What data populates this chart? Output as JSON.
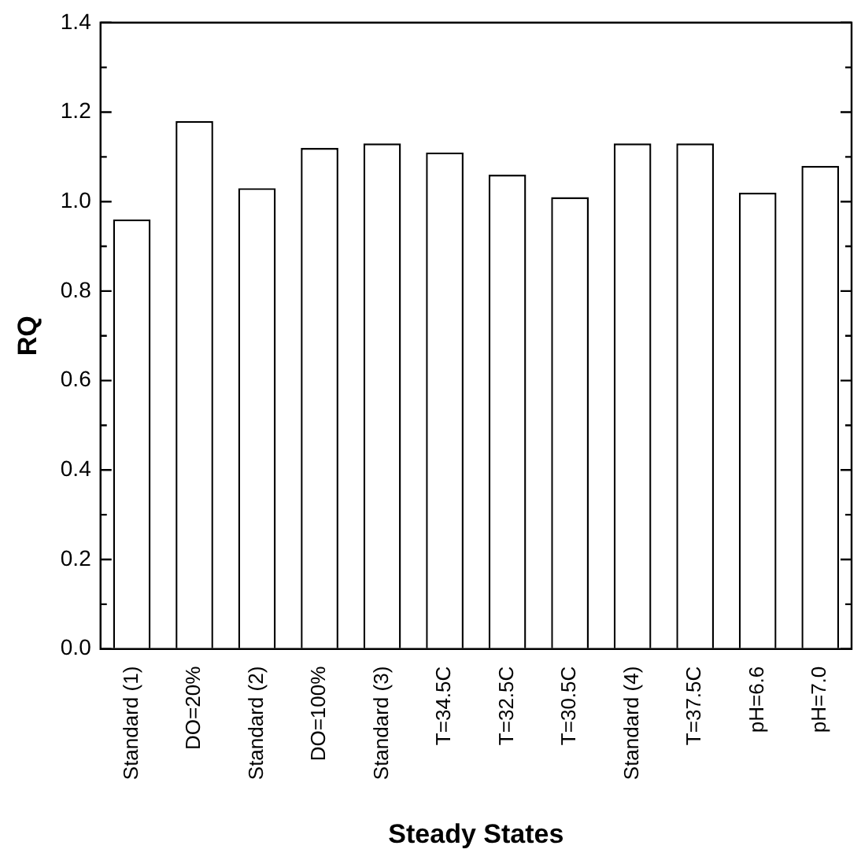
{
  "chart_data": {
    "type": "bar",
    "xlabel": "Steady States",
    "ylabel": "RQ",
    "categories": [
      "Standard (1)",
      "DO=20%",
      "Standard (2)",
      "DO=100%",
      "Standard (3)",
      "T=34.5C",
      "T=32.5C",
      "T=30.5C",
      "Standard (4)",
      "T=37.5C",
      "pH=6.6",
      "pH=7.0"
    ],
    "values": [
      0.96,
      1.18,
      1.03,
      1.12,
      1.13,
      1.11,
      1.06,
      1.01,
      1.13,
      1.13,
      1.02,
      1.08
    ],
    "color": "#ffffff",
    "ylim": [
      0,
      1.4
    ],
    "yticks": [
      {
        "value": 0,
        "label": "0.0"
      },
      {
        "value": 0.1,
        "label": null
      },
      {
        "value": 0.2,
        "label": "0.2"
      },
      {
        "value": 0.3,
        "label": null
      },
      {
        "value": 0.4,
        "label": "0.4"
      },
      {
        "value": 0.5,
        "label": null
      },
      {
        "value": 0.6,
        "label": "0.6"
      },
      {
        "value": 0.7,
        "label": null
      },
      {
        "value": 0.8,
        "label": "0.8"
      },
      {
        "value": 0.9,
        "label": null
      },
      {
        "value": 1,
        "label": "1.0"
      },
      {
        "value": 1.1,
        "label": null
      },
      {
        "value": 1.2,
        "label": "1.2"
      },
      {
        "value": 1.3,
        "label": null
      },
      {
        "value": 1.4,
        "label": "1.4"
      }
    ],
    "grid": false,
    "legend": false
  }
}
